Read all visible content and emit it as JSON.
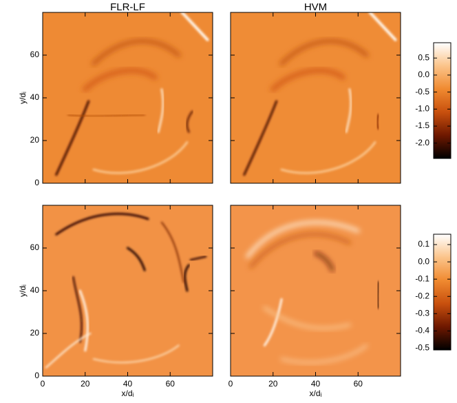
{
  "chart_data": [
    {
      "type": "heatmap",
      "title": "FLR-LF",
      "ylabel": "y/dᵢ",
      "xlim": [
        0,
        80
      ],
      "ylim": [
        0,
        80
      ],
      "xticks": [
        0,
        20,
        40,
        60
      ],
      "yticks": [
        0,
        20,
        40,
        60
      ],
      "xticklabels": false,
      "yticklabels": true
    },
    {
      "type": "heatmap",
      "title": "HVM",
      "xlim": [
        0,
        80
      ],
      "ylim": [
        0,
        80
      ],
      "xticks": [
        0,
        20,
        40,
        60
      ],
      "yticks": [
        0,
        20,
        40,
        60
      ],
      "xticklabels": false,
      "yticklabels": false
    },
    {
      "type": "colorbar",
      "ylim": [
        -2.45,
        0.95
      ],
      "colormap": [
        "#000000",
        "#6e1800",
        "#c8500e",
        "#f08a30",
        "#fbc48a",
        "#ffffff"
      ],
      "yticks": [
        0.5,
        {
          "value": 0,
          "label": "0.0"
        },
        -0.5,
        {
          "value": -1,
          "label": "-1.0"
        },
        -1.5,
        {
          "value": -2,
          "label": "-2.0"
        }
      ]
    },
    {
      "type": "heatmap",
      "ylabel": "y/dᵢ",
      "xlabel": "x/dᵢ",
      "xlim": [
        0,
        80
      ],
      "ylim": [
        0,
        80
      ],
      "xticks": [
        0,
        20,
        40,
        60
      ],
      "yticks": [
        0,
        20,
        40,
        60
      ],
      "xticklabels": true,
      "yticklabels": true
    },
    {
      "type": "heatmap",
      "xlabel": "x/dᵢ",
      "xlim": [
        0,
        80
      ],
      "ylim": [
        0,
        80
      ],
      "xticks": [
        0,
        20,
        40,
        60
      ],
      "yticks": [
        0,
        20,
        40,
        60
      ],
      "xticklabels": true,
      "yticklabels": false
    },
    {
      "type": "colorbar",
      "ylim": [
        -0.51,
        0.16
      ],
      "colormap": [
        "#000000",
        "#6e1800",
        "#c8500e",
        "#f08a30",
        "#fbc48a",
        "#ffffff"
      ],
      "yticks": [
        0.1,
        {
          "value": 0,
          "label": "0.0"
        },
        -0.1,
        -0.2,
        -0.3,
        -0.4,
        -0.5
      ]
    }
  ]
}
